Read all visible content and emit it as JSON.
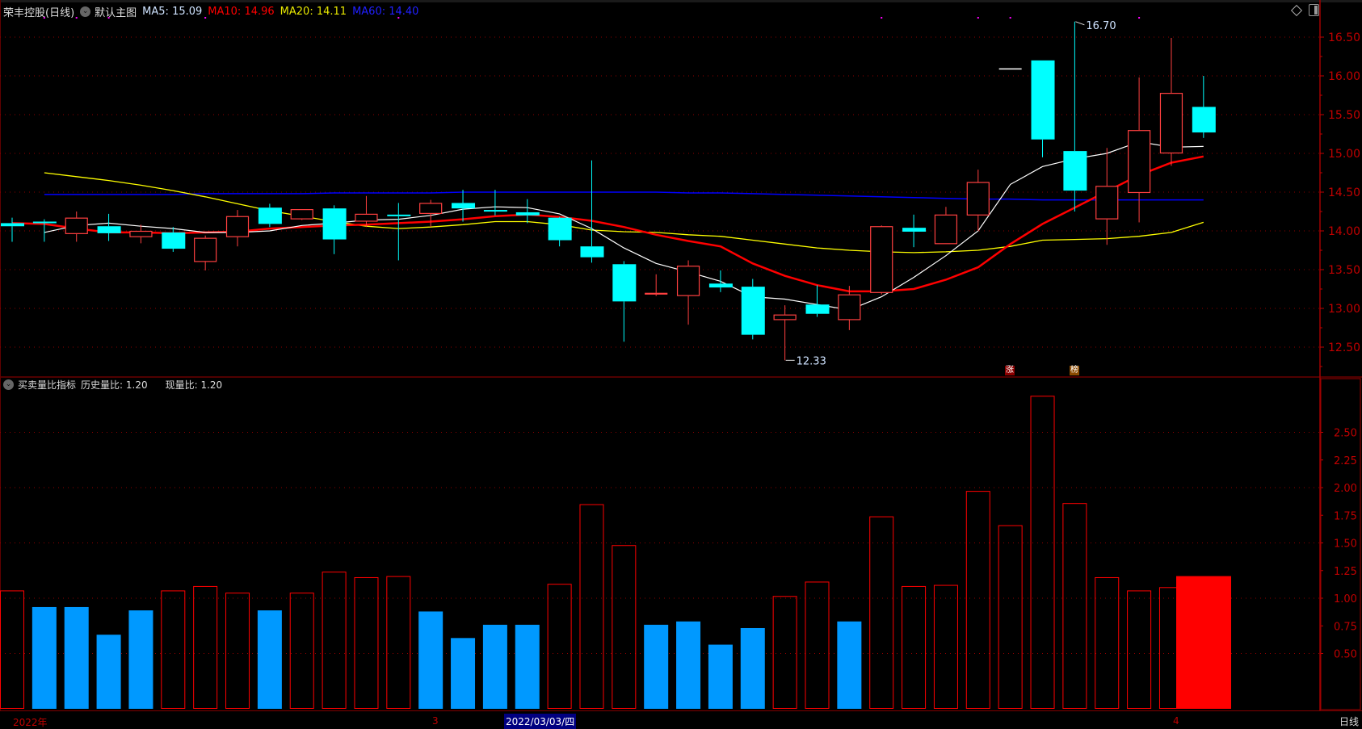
{
  "header": {
    "stock": "荣丰控股(日线)",
    "template": "默认主图",
    "ma5": "MA5: 15.09",
    "ma10": "MA10: 14.96",
    "ma20": "MA20: 14.11",
    "ma60": "MA60: 14.40"
  },
  "indicator_header": {
    "name": "买卖量比指标",
    "hist": "历史量比: 1.20",
    "current": "现量比: 1.20"
  },
  "badges": {
    "zhang": "涨",
    "bang": "榜"
  },
  "annotations": {
    "high": "16.70",
    "low": "12.33"
  },
  "dates": {
    "year": "2022年",
    "m3": "3",
    "selected": "2022/03/03/四",
    "m4": "4"
  },
  "period": "日线",
  "colors": {
    "up": "#ff4040",
    "down": "#00ffff",
    "ma5": "#ffffff",
    "ma10": "#ff0000",
    "ma20": "#ffff00",
    "ma60": "#0000ff",
    "vol_low": "#0099ff",
    "vol_high": "#ff0000",
    "axis": "#c00000"
  },
  "chart_data": [
    {
      "type": "candlestick",
      "title": "荣丰控股 日线",
      "ylim": [
        12.25,
        16.75
      ],
      "yticks": [
        "16.50",
        "16.00",
        "15.50",
        "15.00",
        "14.50",
        "14.00",
        "13.50",
        "13.00",
        "12.50"
      ],
      "ohlc": [
        [
          14.1,
          14.06,
          14.17,
          13.86
        ],
        [
          14.12,
          14.1,
          14.15,
          13.86
        ],
        [
          13.96,
          14.17,
          14.25,
          13.86
        ],
        [
          14.06,
          13.97,
          14.22,
          13.87
        ],
        [
          13.92,
          14.0,
          14.08,
          13.84
        ],
        [
          13.98,
          13.77,
          14.05,
          13.73
        ],
        [
          13.6,
          13.91,
          13.94,
          13.49
        ],
        [
          13.92,
          14.19,
          14.27,
          13.8
        ],
        [
          14.3,
          14.09,
          14.35,
          14.05
        ],
        [
          14.15,
          14.28,
          14.28,
          14.14
        ],
        [
          14.29,
          13.89,
          14.33,
          13.7
        ],
        [
          14.12,
          14.22,
          14.45,
          14.05
        ],
        [
          14.21,
          14.19,
          14.36,
          13.62
        ],
        [
          14.22,
          14.36,
          14.4,
          14.05
        ],
        [
          14.36,
          14.29,
          14.53,
          14.12
        ],
        [
          14.27,
          14.26,
          14.53,
          14.2
        ],
        [
          14.24,
          14.2,
          14.41,
          14.1
        ],
        [
          14.17,
          13.88,
          14.18,
          13.8
        ],
        [
          13.8,
          13.66,
          14.91,
          13.59
        ],
        [
          13.57,
          13.09,
          13.61,
          12.57
        ],
        [
          13.19,
          13.2,
          13.44,
          13.16
        ],
        [
          13.16,
          13.55,
          13.62,
          12.79
        ],
        [
          13.32,
          13.27,
          13.49,
          13.21
        ],
        [
          13.28,
          12.66,
          13.38,
          12.6
        ],
        [
          12.85,
          12.92,
          13.04,
          12.33
        ],
        [
          13.05,
          12.93,
          13.3,
          12.89
        ],
        [
          12.85,
          13.18,
          13.29,
          12.72
        ],
        [
          13.2,
          14.06,
          14.07,
          13.18
        ],
        [
          14.04,
          13.99,
          14.21,
          13.79
        ],
        [
          13.83,
          14.21,
          14.31,
          13.83
        ],
        [
          14.2,
          14.63,
          14.79,
          14.0
        ],
        [
          16.09,
          16.09,
          16.09,
          16.09
        ],
        [
          16.2,
          15.18,
          16.2,
          14.95
        ],
        [
          15.03,
          14.52,
          16.7,
          14.25
        ],
        [
          14.15,
          14.58,
          15.07,
          13.82
        ],
        [
          14.49,
          15.3,
          15.98,
          14.11
        ],
        [
          15.0,
          15.78,
          16.49,
          14.84
        ],
        [
          15.6,
          15.27,
          16.0,
          15.2
        ]
      ],
      "ma5": [
        null,
        13.98,
        14.07,
        14.1,
        14.06,
        14.03,
        13.98,
        13.98,
        14.0,
        14.07,
        14.1,
        14.14,
        14.15,
        14.2,
        14.28,
        14.31,
        14.3,
        14.22,
        14.03,
        13.78,
        13.58,
        13.47,
        13.35,
        13.15,
        13.12,
        13.05,
        12.98,
        13.15,
        13.4,
        13.68,
        14.0,
        14.6,
        14.83,
        14.93,
        15.0,
        15.15,
        15.08,
        15.09
      ],
      "ma10": [
        14.1,
        14.09,
        14.03,
        13.98,
        13.98,
        13.97,
        13.98,
        13.99,
        14.03,
        14.05,
        14.07,
        14.08,
        14.1,
        14.12,
        14.15,
        14.19,
        14.21,
        14.18,
        14.13,
        14.05,
        13.95,
        13.87,
        13.8,
        13.58,
        13.42,
        13.3,
        13.22,
        13.22,
        13.25,
        13.37,
        13.53,
        13.83,
        14.09,
        14.3,
        14.51,
        14.72,
        14.88,
        14.96
      ],
      "ma20": [
        null,
        14.75,
        14.7,
        14.65,
        14.59,
        14.52,
        14.44,
        14.35,
        14.26,
        14.19,
        14.12,
        14.06,
        14.03,
        14.05,
        14.08,
        14.12,
        14.12,
        14.08,
        14.01,
        13.99,
        13.98,
        13.95,
        13.93,
        13.88,
        13.83,
        13.78,
        13.75,
        13.73,
        13.72,
        13.73,
        13.75,
        13.8,
        13.88,
        13.89,
        13.9,
        13.93,
        13.98,
        14.11
      ],
      "ma60": [
        null,
        14.47,
        14.47,
        14.47,
        14.47,
        14.47,
        14.48,
        14.48,
        14.48,
        14.48,
        14.49,
        14.49,
        14.49,
        14.49,
        14.5,
        14.5,
        14.5,
        14.5,
        14.5,
        14.5,
        14.5,
        14.49,
        14.49,
        14.48,
        14.47,
        14.46,
        14.45,
        14.44,
        14.43,
        14.42,
        14.41,
        14.41,
        14.4,
        14.4,
        14.4,
        14.4,
        14.4,
        14.4
      ],
      "marker_days": [
        1,
        2,
        3,
        6,
        12,
        27,
        30,
        31,
        35
      ],
      "high_day": 33,
      "low_day": 24,
      "badge_days": {
        "zhang": 31,
        "bang": 33
      }
    },
    {
      "type": "bar",
      "title": "买卖量比指标",
      "ylim": [
        0,
        2.95
      ],
      "yticks": [
        "2.50",
        "2.25",
        "2.00",
        "1.75",
        "1.50",
        "1.25",
        "1.00",
        "0.75",
        "0.50"
      ],
      "values": [
        1.07,
        0.92,
        0.92,
        0.67,
        0.89,
        1.07,
        1.11,
        1.05,
        0.89,
        1.05,
        1.24,
        1.19,
        1.2,
        0.88,
        0.64,
        0.76,
        0.76,
        1.13,
        1.85,
        1.48,
        0.76,
        0.79,
        0.58,
        0.73,
        1.02,
        1.15,
        0.79,
        1.74,
        1.11,
        1.12,
        1.97,
        1.66,
        2.83,
        1.86,
        1.19,
        1.07,
        1.1,
        1.2
      ],
      "low_flag": [
        0,
        1,
        1,
        1,
        1,
        0,
        0,
        0,
        1,
        0,
        0,
        0,
        0,
        1,
        1,
        1,
        1,
        0,
        0,
        0,
        1,
        1,
        1,
        1,
        0,
        0,
        1,
        0,
        0,
        0,
        0,
        0,
        0,
        0,
        0,
        0,
        0,
        0
      ]
    }
  ]
}
